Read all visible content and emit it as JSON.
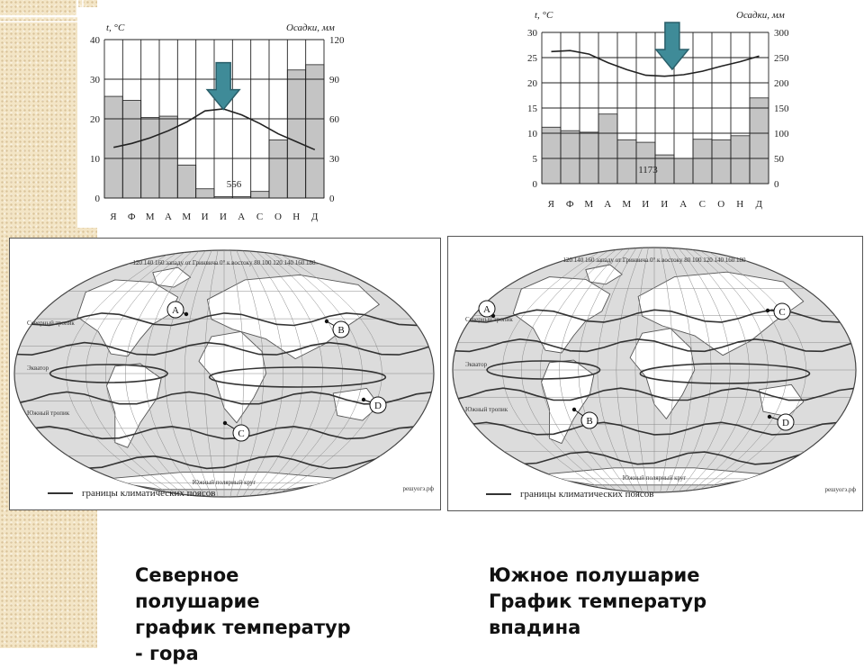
{
  "chart_data": [
    {
      "type": "bar",
      "categories": [
        "Я",
        "Ф",
        "М",
        "А",
        "М",
        "И",
        "И",
        "А",
        "С",
        "О",
        "Н",
        "Д"
      ],
      "ylabel": "t, °С",
      "y2label": "Осадки, мм",
      "ylim": [
        0,
        40
      ],
      "y2lim": [
        0,
        120
      ],
      "yticks": [
        0,
        10,
        20,
        30,
        40
      ],
      "y2ticks": [
        0,
        30,
        60,
        90,
        120
      ],
      "series": [
        {
          "kind": "bar",
          "axis": "right",
          "values": [
            77,
            74,
            61,
            62,
            25,
            7,
            1,
            1,
            5,
            44,
            97,
            101
          ]
        },
        {
          "kind": "line",
          "axis": "left",
          "values": [
            12.8,
            13.8,
            15.2,
            17.0,
            19.2,
            22.0,
            22.5,
            21.0,
            18.8,
            16.2,
            14.2,
            12.2
          ]
        }
      ],
      "annotation": "556"
    },
    {
      "type": "bar",
      "categories": [
        "Я",
        "Ф",
        "М",
        "А",
        "М",
        "И",
        "И",
        "А",
        "С",
        "О",
        "Н",
        "Д"
      ],
      "ylabel": "t, °С",
      "y2label": "Осадки, мм",
      "ylim": [
        0,
        30
      ],
      "y2lim": [
        0,
        300
      ],
      "yticks": [
        0,
        5,
        10,
        15,
        20,
        25,
        30
      ],
      "y2ticks": [
        0,
        50,
        100,
        150,
        200,
        250,
        300
      ],
      "series": [
        {
          "kind": "bar",
          "axis": "right",
          "values": [
            112,
            105,
            102,
            138,
            87,
            82,
            57,
            50,
            88,
            87,
            95,
            170
          ]
        },
        {
          "kind": "line",
          "axis": "left",
          "values": [
            26.2,
            26.4,
            25.7,
            24.0,
            22.6,
            21.5,
            21.3,
            21.6,
            22.3,
            23.3,
            24.2,
            25.3
          ]
        }
      ],
      "annotation": "1173"
    }
  ],
  "maps": [
    {
      "points": [
        "A",
        "B",
        "C",
        "D"
      ],
      "top_text": "120 140 160 западу от Гринвича 0° к востоку 80 100 120 140 160 180",
      "left_labels": [
        "Северный тропик",
        "Экватор",
        "Южный тропик"
      ],
      "bottom_text": "Южный полярный круг",
      "legend": "границы климатических поясов",
      "watermark": "решуогэ.рф"
    },
    {
      "points": [
        "A",
        "B",
        "C",
        "D"
      ],
      "top_text": "120 140 160 западу от Гринвича 0° к востоку 80 100 120 140 160 180",
      "left_labels": [
        "Северный тропик",
        "Экватор",
        "Южный тропик"
      ],
      "bottom_text": "Южный полярный круг",
      "legend": "границы климатических поясов",
      "watermark": "решуогэ.рф"
    }
  ],
  "captions": {
    "left": [
      "Северное",
      "полушарие",
      "график температур",
      "- гора"
    ],
    "right": [
      "Южное полушарие",
      "График температур",
      "впадина"
    ]
  },
  "colors": {
    "bars": "#c4c4c4",
    "arrow": "#3f8b98",
    "map_bg": "#dcdcdc",
    "land": "#ffffff"
  }
}
